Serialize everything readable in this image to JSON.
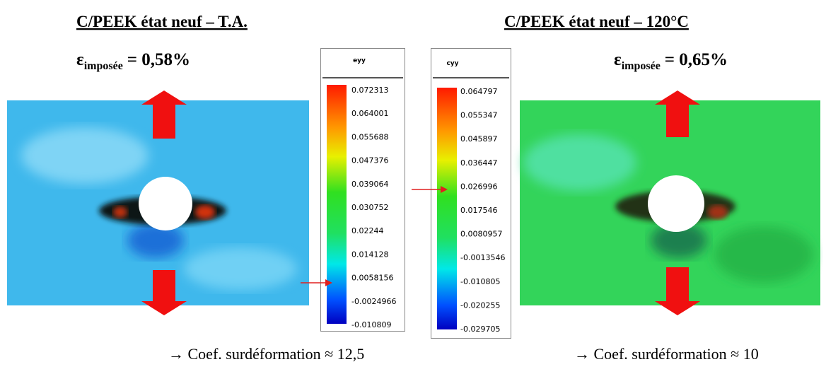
{
  "panels": [
    {
      "title": "C/PEEK état neuf – T.A.",
      "strain_symbol": "ε",
      "strain_subscript": "imposée",
      "strain_value": "= 0,58%",
      "colorbar_title": "eyy",
      "colorbar_labels": [
        "0.072313",
        "0.064001",
        "0.055688",
        "0.047376",
        "0.039064",
        "0.030752",
        "0.02244",
        "0.014128",
        "0.0058156",
        "-0.0024966",
        "-0.010809"
      ],
      "coefficient": "→ Coef. surdéformation  ≈ 12,5"
    },
    {
      "title": "C/PEEK état neuf – 120°C",
      "strain_symbol": "ε",
      "strain_subscript": "imposée",
      "strain_value": "= 0,65%",
      "colorbar_title": "cyy",
      "colorbar_labels": [
        "0.064797",
        "0.055347",
        "0.045897",
        "0.036447",
        "0.026996",
        "0.017546",
        "0.0080957",
        "-0.0013546",
        "-0.010805",
        "-0.020255",
        "-0.029705"
      ],
      "coefficient": "→ Coef. surdéformation  ≈ 10"
    }
  ]
}
